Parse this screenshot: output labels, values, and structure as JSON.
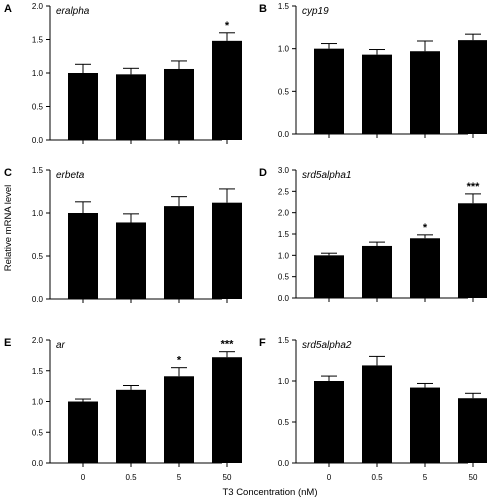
{
  "chart_data": {
    "type": "bar",
    "xlabel": "T3 Concentration (nM)",
    "ylabel": "Relative mRNA level",
    "categories": [
      "0",
      "0.5",
      "5",
      "50"
    ],
    "bar_color": "#000000",
    "panels": [
      {
        "letter": "A",
        "title": "eralpha",
        "ylim": [
          0,
          2.0
        ],
        "yticks": [
          "0.0",
          "0.5",
          "1.0",
          "1.5",
          "2.0"
        ],
        "values": [
          1.0,
          0.98,
          1.06,
          1.48
        ],
        "errors": [
          0.13,
          0.09,
          0.12,
          0.12
        ],
        "significance": [
          "",
          "",
          "",
          "*"
        ]
      },
      {
        "letter": "B",
        "title": "cyp19",
        "ylim": [
          0,
          1.5
        ],
        "yticks": [
          "0.0",
          "0.5",
          "1.0",
          "1.5"
        ],
        "values": [
          1.0,
          0.93,
          0.97,
          1.1
        ],
        "errors": [
          0.06,
          0.06,
          0.12,
          0.07
        ],
        "significance": [
          "",
          "",
          "",
          ""
        ]
      },
      {
        "letter": "C",
        "title": "erbeta",
        "ylim": [
          0,
          1.5
        ],
        "yticks": [
          "0.0",
          "0.5",
          "1.0",
          "1.5"
        ],
        "values": [
          1.0,
          0.89,
          1.08,
          1.12
        ],
        "errors": [
          0.13,
          0.1,
          0.11,
          0.16
        ],
        "significance": [
          "",
          "",
          "",
          ""
        ]
      },
      {
        "letter": "D",
        "title": "srd5alpha1",
        "ylim": [
          0,
          3.0
        ],
        "yticks": [
          "0.0",
          "0.5",
          "1.0",
          "1.5",
          "2.0",
          "2.5",
          "3.0"
        ],
        "values": [
          1.0,
          1.22,
          1.4,
          2.22
        ],
        "errors": [
          0.05,
          0.09,
          0.08,
          0.22
        ],
        "significance": [
          "",
          "",
          "*",
          "***"
        ]
      },
      {
        "letter": "E",
        "title": "ar",
        "ylim": [
          0,
          2.0
        ],
        "yticks": [
          "0.0",
          "0.5",
          "1.0",
          "1.5",
          "2.0"
        ],
        "values": [
          1.0,
          1.19,
          1.41,
          1.72
        ],
        "errors": [
          0.04,
          0.07,
          0.14,
          0.09
        ],
        "significance": [
          "",
          "",
          "*",
          "***"
        ]
      },
      {
        "letter": "F",
        "title": "srd5alpha2",
        "ylim": [
          0,
          1.5
        ],
        "yticks": [
          "0.0",
          "0.5",
          "1.0",
          "1.5"
        ],
        "values": [
          1.0,
          1.19,
          0.92,
          0.79
        ],
        "errors": [
          0.06,
          0.11,
          0.05,
          0.06
        ],
        "significance": [
          "",
          "",
          "",
          ""
        ]
      }
    ]
  }
}
